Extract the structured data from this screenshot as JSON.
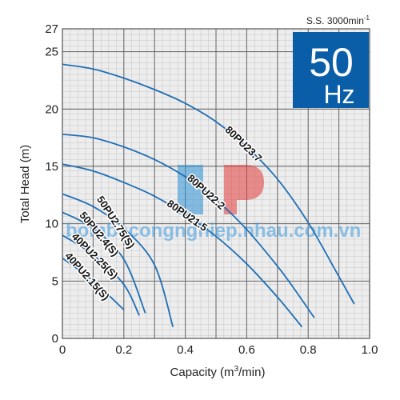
{
  "chart_data": {
    "type": "line",
    "xlabel": "Capacity (m",
    "xlabel_sup": "3",
    "xlabel_tail": "/min)",
    "ylabel": "Total Head (m)",
    "xlim": [
      0,
      1.0
    ],
    "ylim": [
      0,
      27
    ],
    "x_ticks": [
      "0",
      "0.2",
      "0.4",
      "0.6",
      "0.8",
      "1.0"
    ],
    "y_ticks": [
      "0",
      "5",
      "10",
      "15",
      "20",
      "25",
      "27"
    ],
    "grid": true,
    "speed_note": "S.S. 3000min",
    "speed_note_sup": "-1",
    "frequency_badge": {
      "value": "50",
      "unit": "Hz",
      "color": "#0a5ea8"
    },
    "series_color": "#1f6fb5",
    "watermark_text": "bombacongnghiep.nhau.com.vn",
    "series": [
      {
        "name": "80PU23.7",
        "x": [
          0,
          0.1,
          0.2,
          0.3,
          0.4,
          0.5,
          0.6,
          0.7,
          0.8,
          0.9,
          0.95
        ],
        "y": [
          23.9,
          23.5,
          22.7,
          21.7,
          20.5,
          18.9,
          16.7,
          13.9,
          10.1,
          5.4,
          3.0
        ]
      },
      {
        "name": "80PU22.2",
        "x": [
          0,
          0.1,
          0.2,
          0.3,
          0.4,
          0.5,
          0.6,
          0.7,
          0.75,
          0.82
        ],
        "y": [
          17.8,
          17.5,
          16.7,
          15.6,
          14.1,
          12.1,
          9.5,
          6.3,
          4.5,
          1.8
        ]
      },
      {
        "name": "80PU21.5",
        "x": [
          0,
          0.1,
          0.2,
          0.3,
          0.4,
          0.5,
          0.6,
          0.7,
          0.78
        ],
        "y": [
          15.2,
          14.6,
          13.6,
          12.4,
          10.8,
          8.9,
          6.5,
          3.6,
          1.0
        ]
      },
      {
        "name": "50PU2.75(S)",
        "x": [
          0,
          0.1,
          0.2,
          0.3,
          0.36
        ],
        "y": [
          12.6,
          11.5,
          9.6,
          6.4,
          1.0
        ]
      },
      {
        "name": "50PU2.4(S)",
        "x": [
          0,
          0.1,
          0.2,
          0.27
        ],
        "y": [
          11.0,
          9.6,
          6.9,
          2.2
        ]
      },
      {
        "name": "40PU2.25(S)",
        "x": [
          0,
          0.1,
          0.2,
          0.25
        ],
        "y": [
          9.0,
          7.3,
          4.7,
          2.0
        ]
      },
      {
        "name": "40PU2.15(S)",
        "x": [
          0,
          0.1,
          0.2
        ],
        "y": [
          7.0,
          5.0,
          2.5
        ]
      }
    ]
  }
}
